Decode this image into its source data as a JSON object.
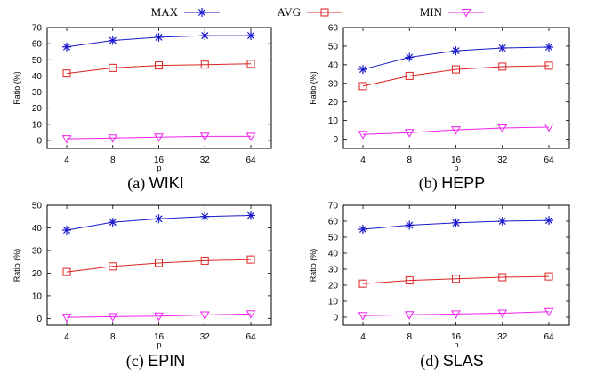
{
  "legend": {
    "entries": [
      {
        "name": "MAX",
        "color": "#1a1acc",
        "marker": "asterisk"
      },
      {
        "name": "AVG",
        "color": "#dd2222",
        "marker": "square"
      },
      {
        "name": "MIN",
        "color": "#ee22ee",
        "marker": "triangle-down"
      }
    ]
  },
  "chart_data": [
    {
      "type": "line",
      "caption_prefix": "(a)",
      "caption_name": "WIKI",
      "xlabel": "p",
      "ylabel": "Ratio (%)",
      "x": [
        4,
        8,
        16,
        32,
        64
      ],
      "x_scale": "log2",
      "ylim": [
        -5,
        70
      ],
      "yticks": [
        0,
        10,
        20,
        30,
        40,
        50,
        60,
        70
      ],
      "series": [
        {
          "name": "MAX",
          "values": [
            58,
            62,
            64,
            65,
            65
          ]
        },
        {
          "name": "AVG",
          "values": [
            41.5,
            45,
            46.5,
            47,
            47.5
          ]
        },
        {
          "name": "MIN",
          "values": [
            1,
            1.5,
            2,
            2.5,
            2.5
          ]
        }
      ]
    },
    {
      "type": "line",
      "caption_prefix": "(b)",
      "caption_name": "HEPP",
      "xlabel": "p",
      "ylabel": "Ratio (%)",
      "x": [
        4,
        8,
        16,
        32,
        64
      ],
      "x_scale": "log2",
      "ylim": [
        -5,
        60
      ],
      "yticks": [
        0,
        10,
        20,
        30,
        40,
        50,
        60
      ],
      "series": [
        {
          "name": "MAX",
          "values": [
            37.5,
            44,
            47.5,
            49,
            49.5
          ]
        },
        {
          "name": "AVG",
          "values": [
            28.5,
            34,
            37.5,
            39,
            39.5
          ]
        },
        {
          "name": "MIN",
          "values": [
            2.5,
            3.5,
            5,
            6,
            6.5
          ]
        }
      ]
    },
    {
      "type": "line",
      "caption_prefix": "(c)",
      "caption_name": "EPIN",
      "xlabel": "p",
      "ylabel": "Ratio (%)",
      "x": [
        4,
        8,
        16,
        32,
        64
      ],
      "x_scale": "log2",
      "ylim": [
        -3,
        50
      ],
      "yticks": [
        0,
        10,
        20,
        30,
        40,
        50
      ],
      "series": [
        {
          "name": "MAX",
          "values": [
            39,
            42.5,
            44,
            45,
            45.5
          ]
        },
        {
          "name": "AVG",
          "values": [
            20.5,
            23,
            24.5,
            25.5,
            26
          ]
        },
        {
          "name": "MIN",
          "values": [
            0.5,
            0.8,
            1,
            1.5,
            2
          ]
        }
      ]
    },
    {
      "type": "line",
      "caption_prefix": "(d)",
      "caption_name": "SLAS",
      "xlabel": "p",
      "ylabel": "Ratio (%)",
      "x": [
        4,
        8,
        16,
        32,
        64
      ],
      "x_scale": "log2",
      "ylim": [
        -5,
        70
      ],
      "yticks": [
        0,
        10,
        20,
        30,
        40,
        50,
        60,
        70
      ],
      "series": [
        {
          "name": "MAX",
          "values": [
            55,
            57.5,
            59,
            60,
            60.5
          ]
        },
        {
          "name": "AVG",
          "values": [
            21,
            23,
            24,
            25,
            25.5
          ]
        },
        {
          "name": "MIN",
          "values": [
            1,
            1.5,
            2,
            2.5,
            3.5
          ]
        }
      ]
    }
  ]
}
